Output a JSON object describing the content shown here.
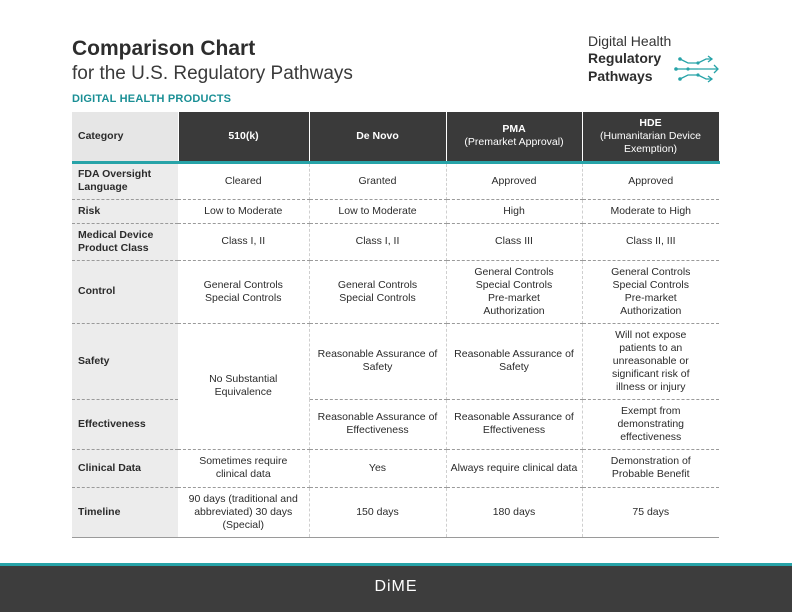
{
  "header": {
    "title": "Comparison Chart",
    "subtitle": "for the U.S. Regulatory Pathways",
    "section": "DIGITAL HEALTH PRODUCTS"
  },
  "logo": {
    "line1": "Digital Health",
    "line2": "Regulatory",
    "line3": "Pathways",
    "icon": "circuit-arrows-icon",
    "accent": "#27a3a8"
  },
  "table": {
    "headers": {
      "category": "Category",
      "k510": {
        "title": "510(k)",
        "sub": ""
      },
      "denovo": {
        "title": "De Novo",
        "sub": ""
      },
      "pma": {
        "title": "PMA",
        "sub": "(Premarket Approval)"
      },
      "hde": {
        "title": "HDE",
        "sub": "(Humanitarian Device Exemption)"
      }
    },
    "rows": {
      "oversight": {
        "category": "FDA Oversight Language",
        "k510": "Cleared",
        "denovo": "Granted",
        "pma": "Approved",
        "hde": "Approved"
      },
      "risk": {
        "category": "Risk",
        "k510": "Low to Moderate",
        "denovo": "Low to Moderate",
        "pma": "High",
        "hde": "Moderate to High"
      },
      "class": {
        "category": "Medical Device Product Class",
        "k510": "Class I, II",
        "denovo": "Class I, II",
        "pma": "Class III",
        "hde": "Class II, III"
      },
      "control": {
        "category": "Control",
        "k510": "General Controls Special Controls",
        "denovo": "General Controls Special Controls",
        "pma": "General Controls Special Controls Pre-market Authorization",
        "hde": "General Controls Special Controls Pre-market Authorization"
      },
      "safety": {
        "category": "Safety",
        "k510": "No Substantial Equivalence",
        "denovo": "Reasonable Assurance of Safety",
        "pma": "Reasonable Assurance of Safety",
        "hde": "Will not expose patients to an unreasonable or significant risk of illness or injury"
      },
      "effectiveness": {
        "category": "Effectiveness",
        "denovo": "Reasonable Assurance of Effectiveness",
        "pma": "Reasonable Assurance of Effectiveness",
        "hde": "Exempt from demonstrating effectiveness"
      },
      "clinical": {
        "category": "Clinical Data",
        "k510": "Sometimes require clinical data",
        "denovo": "Yes",
        "pma": "Always require clinical data",
        "hde": "Demonstration of Probable Benefit"
      },
      "timeline": {
        "category": "Timeline",
        "k510": "90 days (traditional and abbreviated) 30 days (Special)",
        "denovo": "150 days",
        "pma": "180 days",
        "hde": "75 days"
      }
    }
  },
  "footer": {
    "brand": "DiME",
    "background": "#3d3d3d"
  }
}
